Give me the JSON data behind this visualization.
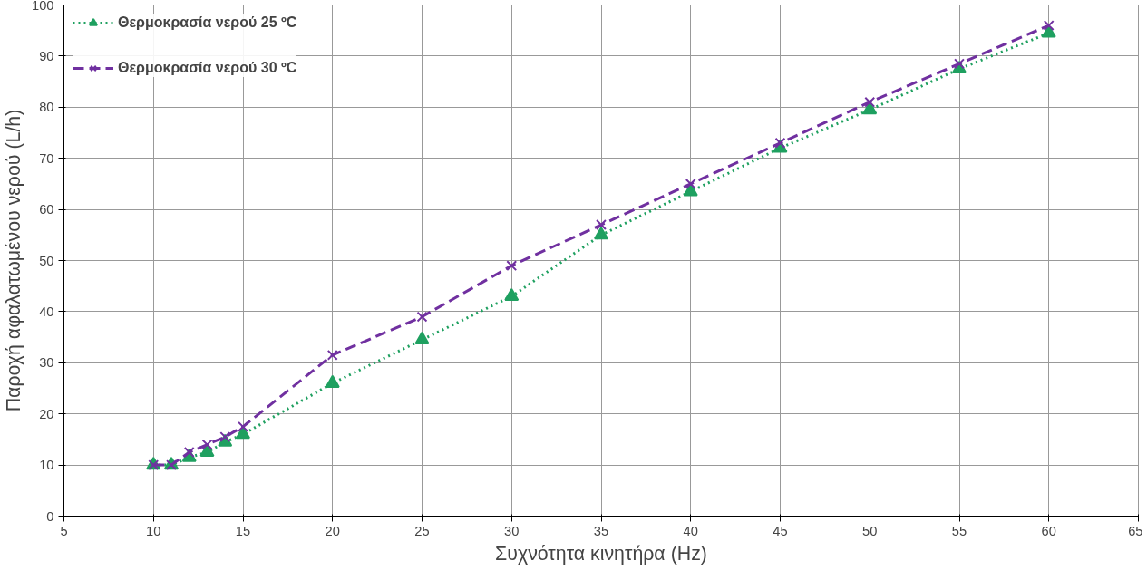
{
  "chart_data": {
    "type": "line",
    "xlabel": "Συχνότητα κινητήρα (Hz)",
    "ylabel": "Παροχή αφαλατωμένου νερού (L/h)",
    "x": [
      10,
      11,
      12,
      13,
      14,
      15,
      20,
      25,
      30,
      35,
      40,
      45,
      50,
      55,
      60
    ],
    "series": [
      {
        "name": "Θερμοκρασία νερού 25 ºC",
        "color": "#1fa060",
        "marker": "triangle",
        "line_style": "dotted",
        "values": [
          10,
          10,
          11.5,
          12.5,
          14.5,
          16,
          26,
          34.5,
          43,
          55,
          63.5,
          72,
          79.5,
          87.5,
          94.5
        ]
      },
      {
        "name": "Θερμοκρασία νερού 30 ºC",
        "color": "#7030a0",
        "marker": "cross",
        "line_style": "dashed",
        "values": [
          10,
          10,
          12.5,
          14,
          15.5,
          17.5,
          31.5,
          39,
          49,
          57,
          65,
          73,
          81,
          88.5,
          96
        ]
      }
    ],
    "xlim": [
      5,
      65
    ],
    "xticks": [
      5,
      10,
      15,
      20,
      25,
      30,
      35,
      40,
      45,
      50,
      55,
      60,
      65
    ],
    "ylim": [
      0,
      100
    ],
    "yticks": [
      0,
      10,
      20,
      30,
      40,
      50,
      60,
      70,
      80,
      90,
      100
    ],
    "grid": true,
    "legend": "top left"
  }
}
